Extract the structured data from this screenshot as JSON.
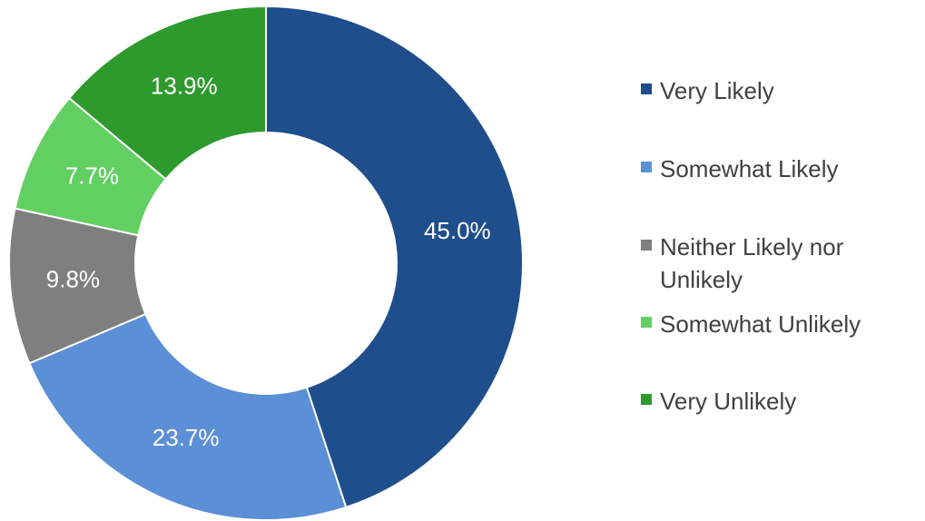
{
  "chart_data": {
    "type": "donut",
    "categories": [
      "Very Likely",
      "Somewhat Likely",
      "Neither Likely nor Unlikely",
      "Somewhat Unlikely",
      "Very Unlikely"
    ],
    "values": [
      45.0,
      23.7,
      9.8,
      7.7,
      13.9
    ],
    "value_labels": [
      "45.0%",
      "23.7%",
      "9.8%",
      "7.7%",
      "13.9%"
    ],
    "colors": [
      "#1f4e8c",
      "#5b8fd6",
      "#7f7f7f",
      "#62cf62",
      "#2e9a2e"
    ],
    "legend": "right"
  }
}
